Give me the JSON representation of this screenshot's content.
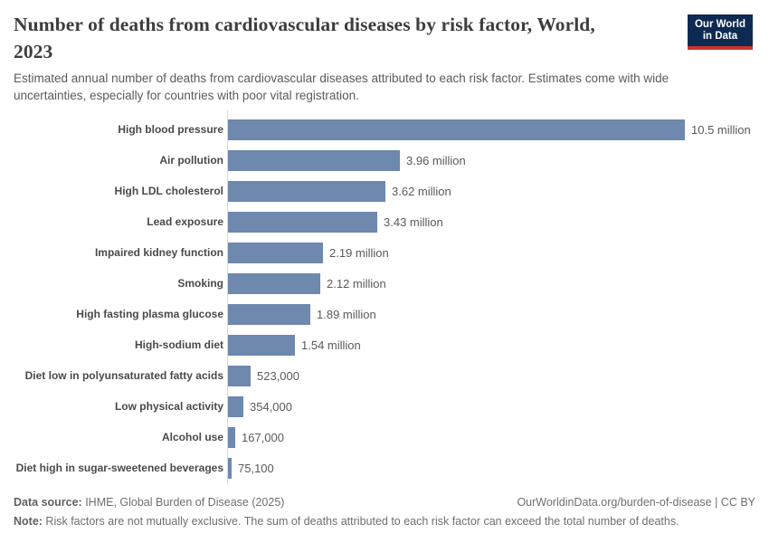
{
  "header": {
    "title_line1": "Number of deaths from cardiovascular diseases by risk factor, World,",
    "title_line2": "2023",
    "subtitle": "Estimated annual number of deaths from cardiovascular diseases attributed to each risk factor. Estimates come with wide uncertainties, especially for countries with poor vital registration.",
    "logo": {
      "line1": "Our World",
      "line2": "in Data"
    }
  },
  "chart_data": {
    "type": "bar",
    "orientation": "horizontal",
    "title": "Number of deaths from cardiovascular diseases by risk factor, World, 2023",
    "subtitle": "Estimated annual number of deaths from cardiovascular diseases attributed to each risk factor. Estimates come with wide uncertainties, especially for countries with poor vital registration.",
    "categories": [
      "High blood pressure",
      "Air pollution",
      "High LDL cholesterol",
      "Lead exposure",
      "Impaired kidney function",
      "Smoking",
      "High fasting plasma glucose",
      "High-sodium diet",
      "Diet low in polyunsaturated fatty acids",
      "Low physical activity",
      "Alcohol use",
      "Diet high in sugar-sweetened beverages"
    ],
    "values": [
      10500000,
      3960000,
      3620000,
      3430000,
      2190000,
      2120000,
      1890000,
      1540000,
      523000,
      354000,
      167000,
      75100
    ],
    "value_labels": [
      "10.5 million",
      "3.96 million",
      "3.62 million",
      "3.43 million",
      "2.19 million",
      "2.12 million",
      "1.89 million",
      "1.54 million",
      "523,000",
      "354,000",
      "167,000",
      "75,100"
    ],
    "xlabel": "",
    "ylabel": "",
    "xlim": [
      0,
      10500000
    ],
    "grid": false,
    "legend": "none",
    "bar_color": "#6e88ae"
  },
  "footer": {
    "datasource_label": "Data source:",
    "datasource_text": " IHME, Global Burden of Disease (2025)",
    "link": "OurWorldinData.org/burden-of-disease | CC BY",
    "note_label": "Note:",
    "note_text": " Risk factors are not mutually exclusive. The sum of deaths attributed to each risk factor can exceed the total number of deaths."
  },
  "colors": {
    "bar": "#6e88ae",
    "title_text": "#3d3d3d",
    "subtitle_text": "#5b5b5b",
    "category_label": "#4a4a4a",
    "value_label": "#5a5a5a",
    "axis_line": "#dadada",
    "footer_text": "#6f6f6f",
    "logo_background": "#0d2a52",
    "logo_accent": "#cb342b"
  }
}
